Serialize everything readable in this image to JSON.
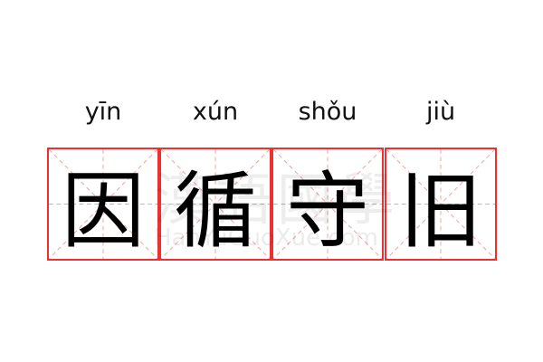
{
  "pinyin": [
    "yīn",
    "xún",
    "shǒu",
    "jiù"
  ],
  "characters": [
    "因",
    "循",
    "守",
    "旧"
  ],
  "watermark": {
    "chinese": "漢語國學",
    "latin": "HanYuGuoXue.com"
  },
  "colors": {
    "grid_border": "#f03030",
    "grid_guides": "#f4a0a0",
    "text": "#000000"
  }
}
